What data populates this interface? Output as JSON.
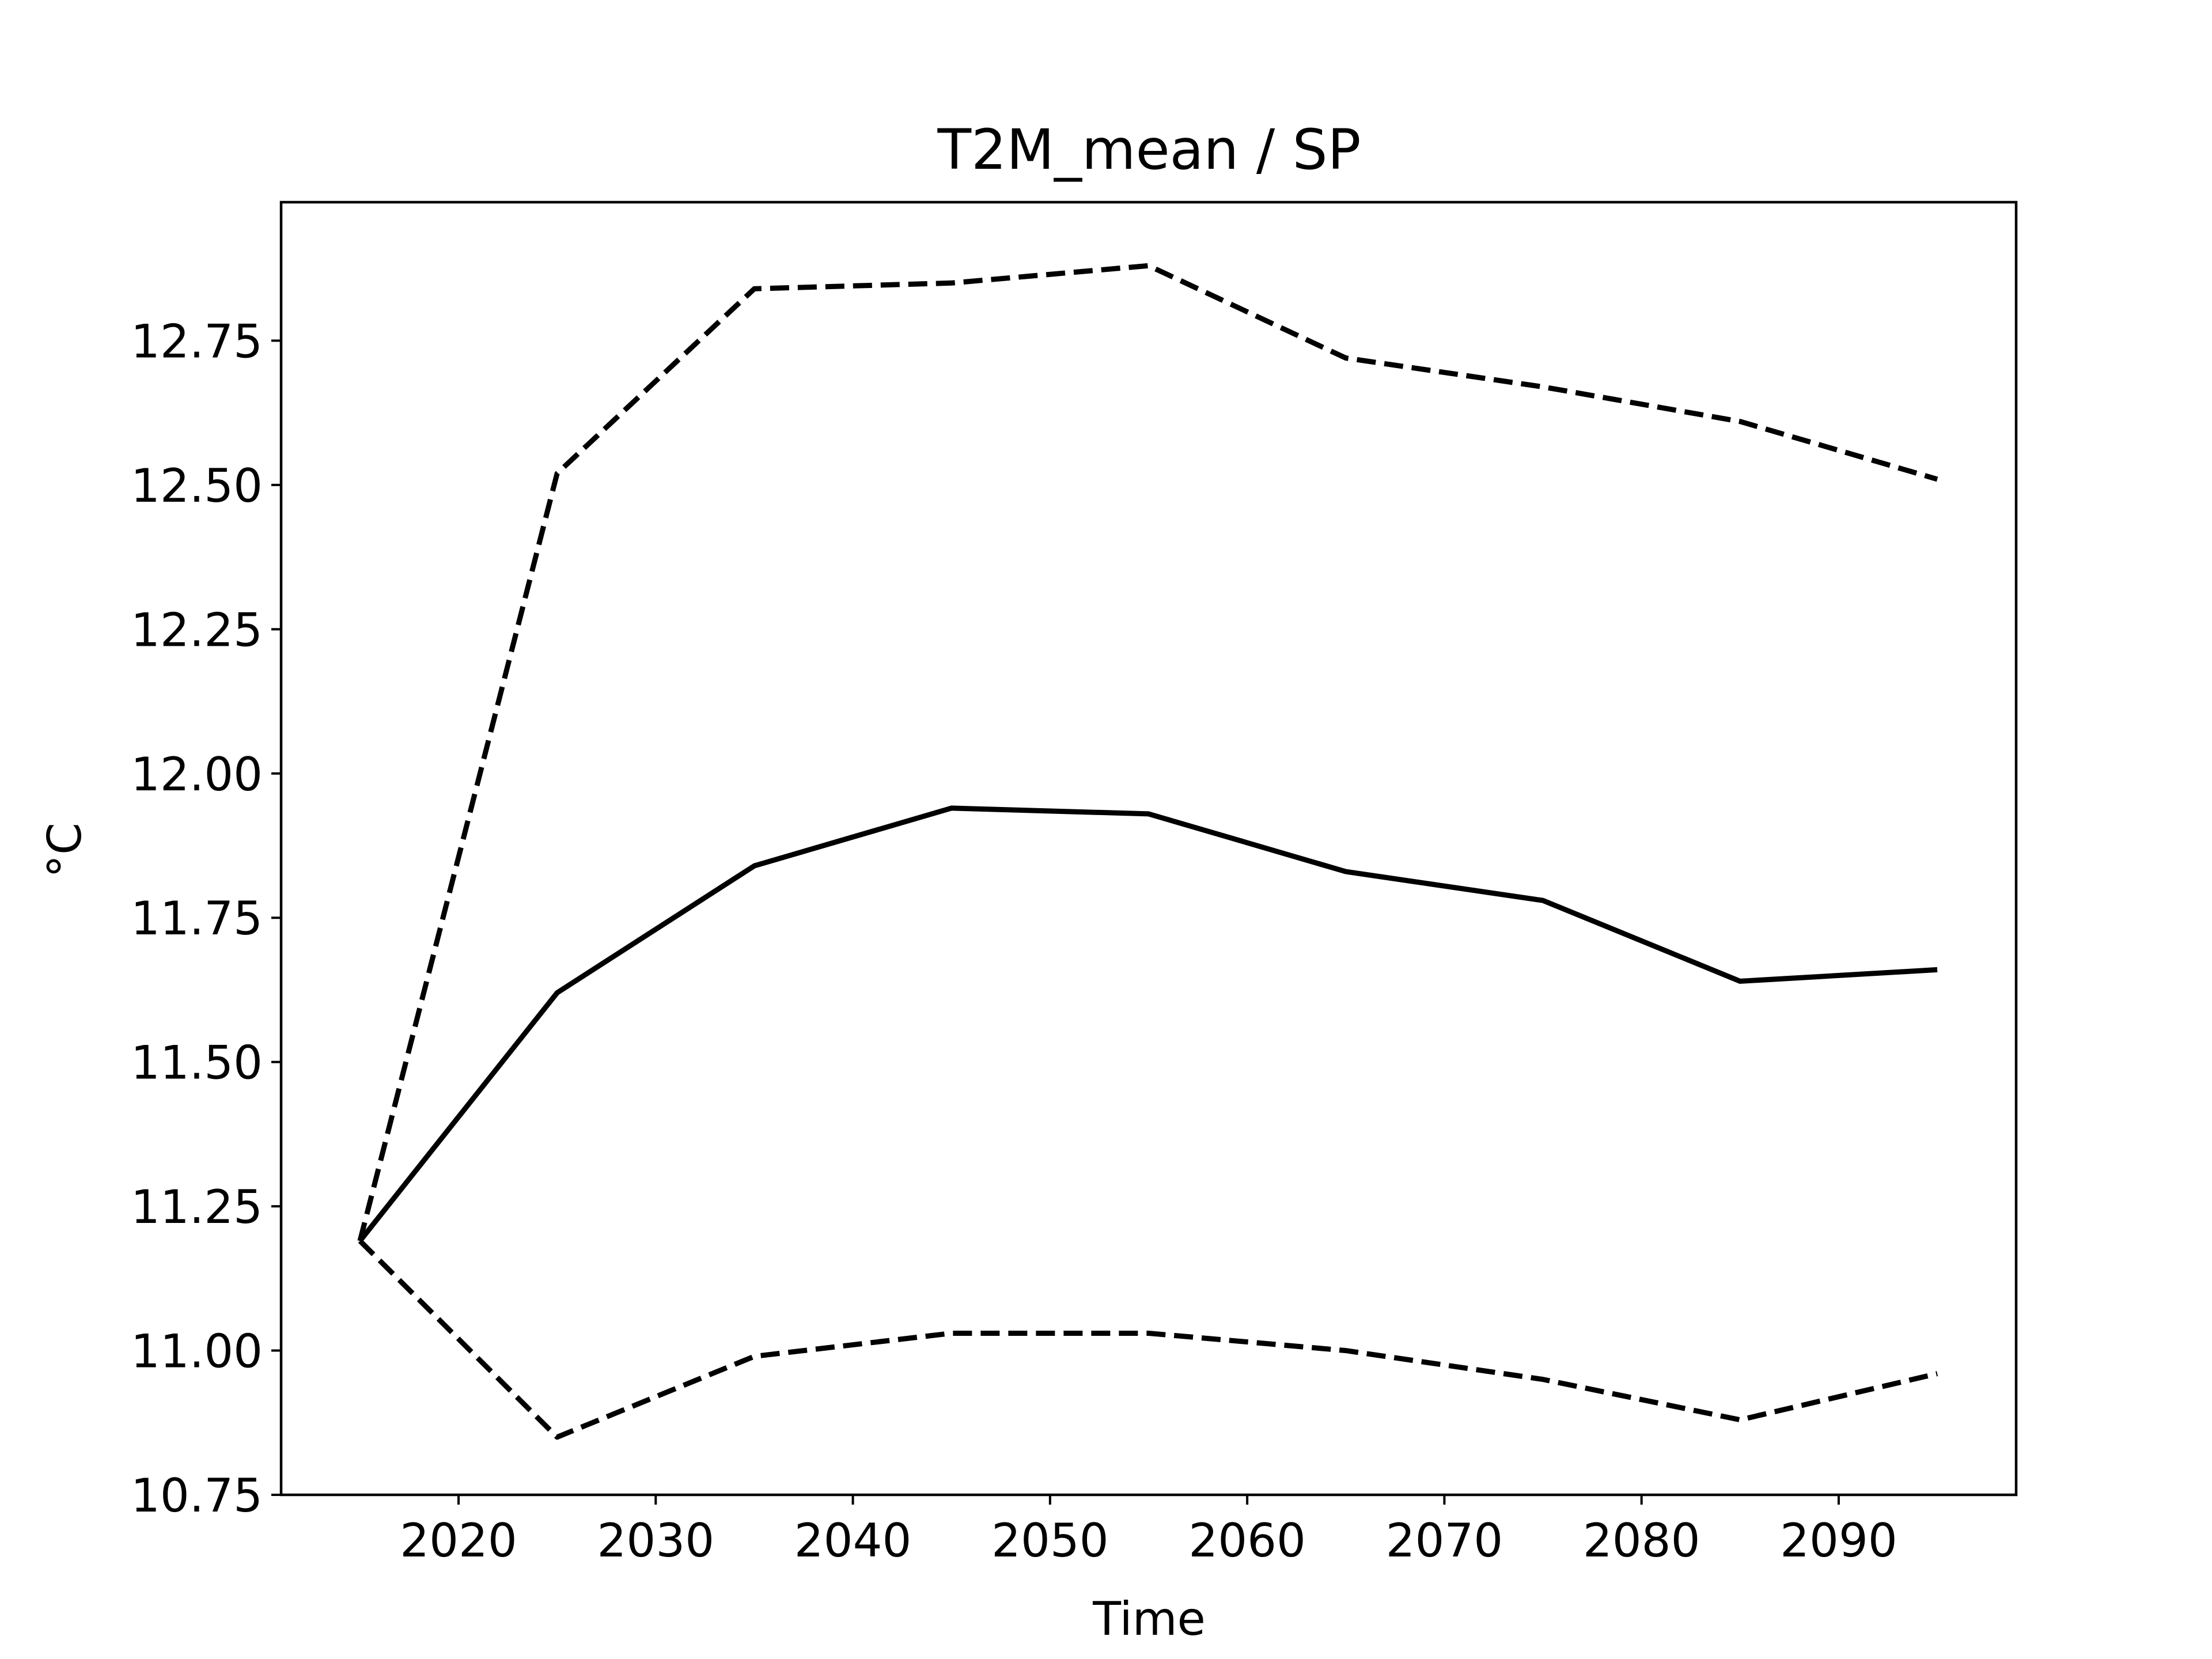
{
  "chart_data": {
    "type": "line",
    "title": "T2M_mean / SP",
    "xlabel": "Time",
    "ylabel": "°C",
    "xlim": [
      2011,
      2099
    ],
    "ylim": [
      10.75,
      12.99
    ],
    "x_ticks": [
      2020,
      2030,
      2040,
      2050,
      2060,
      2070,
      2080,
      2090
    ],
    "y_ticks": [
      10.75,
      11.0,
      11.25,
      11.5,
      11.75,
      12.0,
      12.25,
      12.5,
      12.75
    ],
    "y_tick_labels": [
      "10.75",
      "11.00",
      "11.25",
      "11.50",
      "11.75",
      "12.00",
      "12.25",
      "12.50",
      "12.75"
    ],
    "x_tick_labels": [
      "2020",
      "2030",
      "2040",
      "2050",
      "2060",
      "2070",
      "2080",
      "2090"
    ],
    "grid": false,
    "legend": "none",
    "line_color": "#000000",
    "x": [
      2015,
      2025,
      2035,
      2045,
      2055,
      2065,
      2075,
      2085,
      2095
    ],
    "series": [
      {
        "style": "dashed",
        "values": [
          11.19,
          12.52,
          12.84,
          12.85,
          12.88,
          12.72,
          12.67,
          12.61,
          12.51
        ]
      },
      {
        "style": "solid",
        "values": [
          11.19,
          11.62,
          11.84,
          11.94,
          11.93,
          11.83,
          11.78,
          11.64,
          11.66
        ]
      },
      {
        "style": "dashed",
        "values": [
          11.19,
          10.85,
          10.99,
          11.03,
          11.03,
          11.0,
          10.95,
          10.88,
          10.96
        ]
      }
    ]
  }
}
